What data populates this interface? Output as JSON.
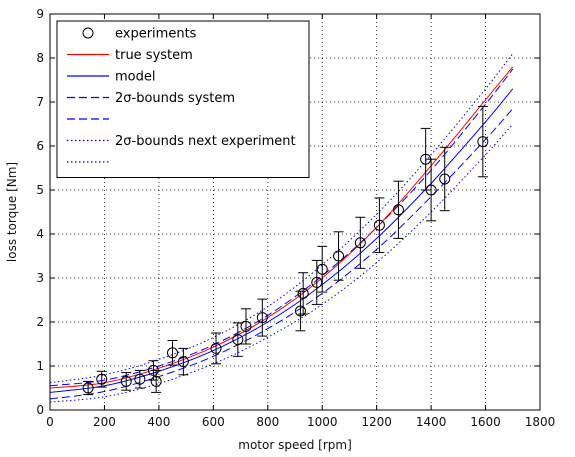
{
  "chart_data": {
    "type": "line",
    "xlabel": "motor speed [rpm]",
    "ylabel": "loss torque [Nm]",
    "xlim": [
      0,
      1800
    ],
    "ylim": [
      0,
      9
    ],
    "xticks": [
      "0",
      "200",
      "400",
      "600",
      "800",
      "1000",
      "1200",
      "1400",
      "1600",
      "1800"
    ],
    "yticks": [
      "0",
      "1",
      "2",
      "3",
      "4",
      "5",
      "6",
      "7",
      "8",
      "9"
    ],
    "grid": true,
    "legend_position": "top-left",
    "colors": {
      "true_system": "#ff0000",
      "model": "#0000ff",
      "bounds": "#0000ff",
      "markers": "#000000"
    },
    "legend": [
      {
        "label": "experiments",
        "style": "marker"
      },
      {
        "label": "true system",
        "style": "solid",
        "color": "#ff0000"
      },
      {
        "label": "model",
        "style": "solid",
        "color": "#0000ff"
      },
      {
        "label": "2σ-bounds system",
        "style": "dashed",
        "color": "#0000ff"
      },
      {
        "label": "",
        "style": "dashed",
        "color": "#0000ff"
      },
      {
        "label": "2σ-bounds next experiment",
        "style": "dotted",
        "color": "#0000ff"
      },
      {
        "label": "",
        "style": "dotted",
        "color": "#0000ff"
      }
    ],
    "experiments": [
      {
        "x": 140,
        "y": 0.5,
        "err": 0.15
      },
      {
        "x": 190,
        "y": 0.7,
        "err": 0.18
      },
      {
        "x": 280,
        "y": 0.65,
        "err": 0.2
      },
      {
        "x": 330,
        "y": 0.7,
        "err": 0.2
      },
      {
        "x": 380,
        "y": 0.9,
        "err": 0.22
      },
      {
        "x": 390,
        "y": 0.65,
        "err": 0.25
      },
      {
        "x": 450,
        "y": 1.3,
        "err": 0.28
      },
      {
        "x": 490,
        "y": 1.1,
        "err": 0.3
      },
      {
        "x": 610,
        "y": 1.4,
        "err": 0.35
      },
      {
        "x": 690,
        "y": 1.6,
        "err": 0.38
      },
      {
        "x": 720,
        "y": 1.9,
        "err": 0.4
      },
      {
        "x": 780,
        "y": 2.1,
        "err": 0.42
      },
      {
        "x": 920,
        "y": 2.25,
        "err": 0.45
      },
      {
        "x": 930,
        "y": 2.65,
        "err": 0.47
      },
      {
        "x": 980,
        "y": 2.9,
        "err": 0.5
      },
      {
        "x": 1000,
        "y": 3.2,
        "err": 0.52
      },
      {
        "x": 1060,
        "y": 3.5,
        "err": 0.55
      },
      {
        "x": 1140,
        "y": 3.8,
        "err": 0.58
      },
      {
        "x": 1210,
        "y": 4.2,
        "err": 0.62
      },
      {
        "x": 1280,
        "y": 4.55,
        "err": 0.65
      },
      {
        "x": 1380,
        "y": 5.7,
        "err": 0.7
      },
      {
        "x": 1400,
        "y": 5.0,
        "err": 0.7
      },
      {
        "x": 1450,
        "y": 5.25,
        "err": 0.72
      },
      {
        "x": 1590,
        "y": 6.1,
        "err": 0.8
      }
    ],
    "series": [
      {
        "role": "true-system",
        "style": "solid",
        "color": "#ff0000",
        "x": [
          0,
          200,
          400,
          600,
          800,
          1000,
          1200,
          1400,
          1600,
          1700
        ],
        "y": [
          0.5,
          0.62,
          0.95,
          1.43,
          2.1,
          3.0,
          4.15,
          5.55,
          7.05,
          7.8
        ]
      },
      {
        "role": "model",
        "style": "solid",
        "color": "#0000ff",
        "x": [
          0,
          200,
          400,
          600,
          800,
          1000,
          1200,
          1400,
          1600,
          1700
        ],
        "y": [
          0.4,
          0.55,
          0.88,
          1.35,
          2.0,
          2.85,
          3.9,
          5.15,
          6.55,
          7.3
        ]
      },
      {
        "role": "bound-system-upper",
        "style": "dashed",
        "color": "#0000ff",
        "x": [
          0,
          200,
          400,
          600,
          800,
          1000,
          1200,
          1400,
          1600,
          1700
        ],
        "y": [
          0.55,
          0.68,
          1.0,
          1.48,
          2.15,
          3.05,
          4.15,
          5.45,
          6.95,
          7.75
        ]
      },
      {
        "role": "bound-system-lower",
        "style": "dashed",
        "color": "#0000ff",
        "x": [
          0,
          200,
          400,
          600,
          800,
          1000,
          1200,
          1400,
          1600,
          1700
        ],
        "y": [
          0.25,
          0.42,
          0.76,
          1.22,
          1.85,
          2.65,
          3.65,
          4.85,
          6.15,
          6.85
        ]
      },
      {
        "role": "bound-next-upper",
        "style": "dotted",
        "color": "#0000ff",
        "x": [
          0,
          200,
          400,
          600,
          800,
          1000,
          1200,
          1400,
          1600,
          1700
        ],
        "y": [
          0.62,
          0.8,
          1.15,
          1.65,
          2.35,
          3.3,
          4.45,
          5.8,
          7.3,
          8.1
        ]
      },
      {
        "role": "bound-next-lower",
        "style": "dotted",
        "color": "#0000ff",
        "x": [
          0,
          200,
          400,
          600,
          800,
          1000,
          1200,
          1400,
          1600,
          1700
        ],
        "y": [
          0.18,
          0.3,
          0.6,
          1.05,
          1.65,
          2.4,
          3.35,
          4.5,
          5.8,
          6.5
        ]
      }
    ]
  }
}
